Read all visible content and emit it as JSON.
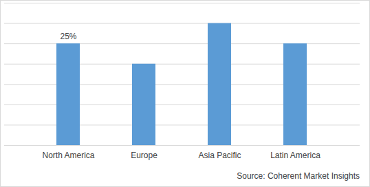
{
  "chart_data": {
    "type": "bar",
    "caption": "Source: Coherent Market Insights",
    "categories": [
      "North America",
      "Europe",
      "Asia Pacific",
      "Latin America"
    ],
    "values": [
      25,
      20,
      30,
      25
    ],
    "value_labels": [
      "25%",
      null,
      null,
      null
    ],
    "data_labels": true,
    "color": "#5b9bd5",
    "ylim": [
      0,
      35
    ],
    "yticks": [
      0,
      5,
      10,
      15,
      20,
      25,
      30,
      35
    ],
    "grid": true,
    "tick_labels": "x"
  }
}
